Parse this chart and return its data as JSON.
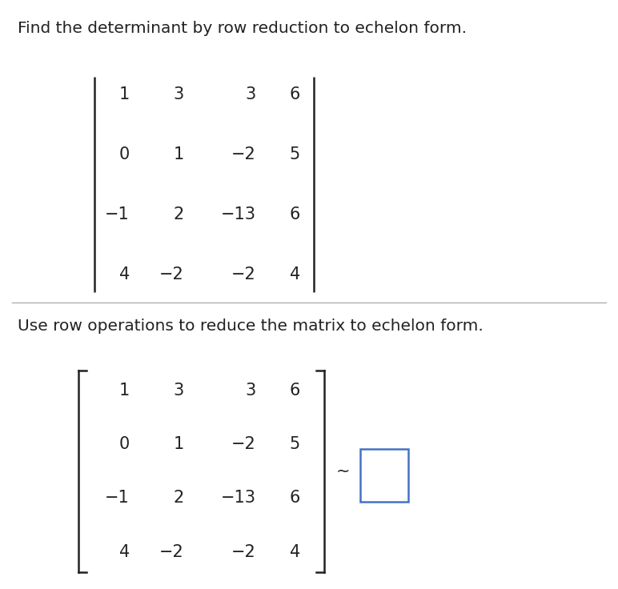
{
  "title": "Find the determinant by row reduction to echelon form.",
  "subtitle": "Use row operations to reduce the matrix to echelon form.",
  "matrix_rows_col0": [
    "1",
    "0",
    "−1",
    "4"
  ],
  "matrix_rows_col1": [
    "3",
    "1",
    "2",
    "−2"
  ],
  "matrix_rows_col2": [
    "3",
    "−2",
    "−13",
    "−2"
  ],
  "matrix_rows_col3": [
    "6",
    "5",
    "6",
    "4"
  ],
  "background_color": "#ffffff",
  "text_color": "#222222",
  "title_fontsize": 14.5,
  "matrix_fontsize": 15,
  "tilde_symbol": "~",
  "separator_color": "#b0b0b0",
  "box_color": "#4472c4"
}
